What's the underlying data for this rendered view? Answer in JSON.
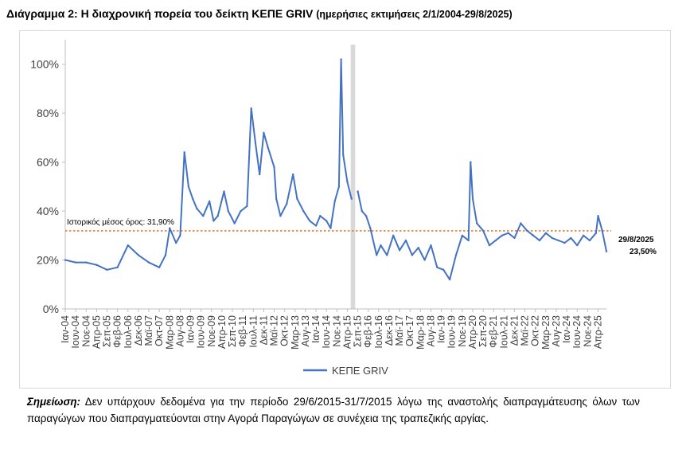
{
  "title": {
    "main": "Διάγραμμα 2: Η διαχρονική πορεία του δείκτη ΚΕΠΕ GRIV",
    "sub": "(ημερήσιες εκτιμήσεις 2/1/2004-29/8/2025)"
  },
  "note": {
    "lead": "Σημείωση:",
    "text": "Δεν υπάρχουν δεδομένα για την περίοδο 29/6/2015-31/7/2015 λόγω της αναστολής διαπραγμάτευσης όλων των παραγώγων που διαπραγματεύονται στην Αγορά Παραγώγων σε συνέχεια της τραπεζικής αργίας."
  },
  "colors": {
    "series": "#4472c4",
    "mean_line": "#ed7d31",
    "gap_band": "#d9d9d9"
  },
  "chart_data": {
    "type": "line",
    "title": "Διάγραμμα 2: Η διαχρονική πορεία του δείκτη ΚΕΠΕ GRIV",
    "ylim": [
      0,
      110
    ],
    "yticks": [
      "0%",
      "20%",
      "40%",
      "60%",
      "80%",
      "100%"
    ],
    "ytick_values": [
      0,
      20,
      40,
      60,
      80,
      100
    ],
    "x_range": [
      "2004-01",
      "2025-08"
    ],
    "x_tick_labels": [
      "Ιαν-04",
      "Ιουν-04",
      "Νοε-04",
      "Απρ-05",
      "Σεπ-05",
      "Φεβ-06",
      "Ιουλ-06",
      "Δεκ-06",
      "Μαϊ-07",
      "Οκτ-07",
      "Μαρ-08",
      "Αυγ-08",
      "Ιαν-09",
      "Ιουν-09",
      "Νοε-09",
      "Απρ-10",
      "Σεπ-10",
      "Φεβ-11",
      "Ιουλ-11",
      "Δεκ-11",
      "Μαϊ-12",
      "Οκτ-12",
      "Μαρ-13",
      "Αυγ-13",
      "Ιαν-14",
      "Ιουν-14",
      "Νοε-14",
      "Απρ-15",
      "Σεπ-15",
      "Φεβ-16",
      "Ιουλ-16",
      "Δεκ-16",
      "Μαϊ-17",
      "Οκτ-17",
      "Μαρ-18",
      "Αυγ-18",
      "Ιαν-19",
      "Ιουν-19",
      "Νοε-19",
      "Απρ-20",
      "Σεπ-20",
      "Φεβ-21",
      "Ιουλ-21",
      "Δεκ-21",
      "Μαϊ-22",
      "Οκτ-22",
      "Μαρ-23",
      "Αυγ-23",
      "Ιαν-24",
      "Ιουν-24",
      "Νοε-24",
      "Απρ-25"
    ],
    "legend": "bottom",
    "grid": false,
    "series": [
      {
        "name": "ΚΕΠΕ GRIV",
        "x": [
          "2004-01",
          "2004-06",
          "2004-11",
          "2005-04",
          "2005-09",
          "2006-02",
          "2006-07",
          "2006-12",
          "2007-05",
          "2007-10",
          "2008-01",
          "2008-03",
          "2008-06",
          "2008-08",
          "2008-10",
          "2008-12",
          "2009-02",
          "2009-04",
          "2009-07",
          "2009-10",
          "2009-12",
          "2010-02",
          "2010-05",
          "2010-07",
          "2010-10",
          "2011-01",
          "2011-04",
          "2011-06",
          "2011-08",
          "2011-10",
          "2011-12",
          "2012-02",
          "2012-05",
          "2012-06",
          "2012-08",
          "2012-11",
          "2013-02",
          "2013-04",
          "2013-07",
          "2013-10",
          "2014-01",
          "2014-03",
          "2014-06",
          "2014-08",
          "2014-10",
          "2014-12",
          "2015-01",
          "2015-02",
          "2015-04",
          "2015-06",
          "2015-08",
          "2015-09",
          "2015-11",
          "2016-01",
          "2016-03",
          "2016-06",
          "2016-08",
          "2016-11",
          "2017-02",
          "2017-05",
          "2017-08",
          "2017-11",
          "2018-02",
          "2018-05",
          "2018-08",
          "2018-11",
          "2019-02",
          "2019-05",
          "2019-08",
          "2019-11",
          "2020-02",
          "2020-03",
          "2020-04",
          "2020-06",
          "2020-09",
          "2020-12",
          "2021-03",
          "2021-06",
          "2021-09",
          "2021-12",
          "2022-03",
          "2022-06",
          "2022-09",
          "2022-12",
          "2023-03",
          "2023-06",
          "2023-09",
          "2023-12",
          "2024-03",
          "2024-06",
          "2024-09",
          "2024-12",
          "2025-03",
          "2025-04",
          "2025-06",
          "2025-08"
        ],
        "values": [
          20,
          19,
          19,
          18,
          16,
          17,
          26,
          22,
          19,
          17,
          22,
          33,
          27,
          30,
          64,
          50,
          45,
          41,
          38,
          44,
          36,
          38,
          48,
          40,
          35,
          40,
          42,
          82,
          68,
          55,
          72,
          66,
          58,
          45,
          38,
          43,
          55,
          45,
          40,
          36,
          34,
          38,
          36,
          33,
          44,
          50,
          102,
          63,
          52,
          45,
          null,
          48,
          40,
          38,
          33,
          22,
          26,
          22,
          30,
          24,
          28,
          22,
          25,
          20,
          26,
          17,
          16,
          12,
          22,
          30,
          28,
          60,
          45,
          35,
          32,
          26,
          28,
          30,
          31,
          29,
          35,
          32,
          30,
          28,
          31,
          29,
          28,
          27,
          29,
          26,
          30,
          28,
          31,
          38,
          32,
          23.5
        ]
      }
    ],
    "reference_line": {
      "label": "Ιστορικός μέσος όρος: 31,90%",
      "value": 31.9
    },
    "gap_period": {
      "start": "2015-06",
      "end": "2015-07"
    },
    "end_annotation": {
      "date": "29/8/2025",
      "value": "23,50%"
    }
  }
}
